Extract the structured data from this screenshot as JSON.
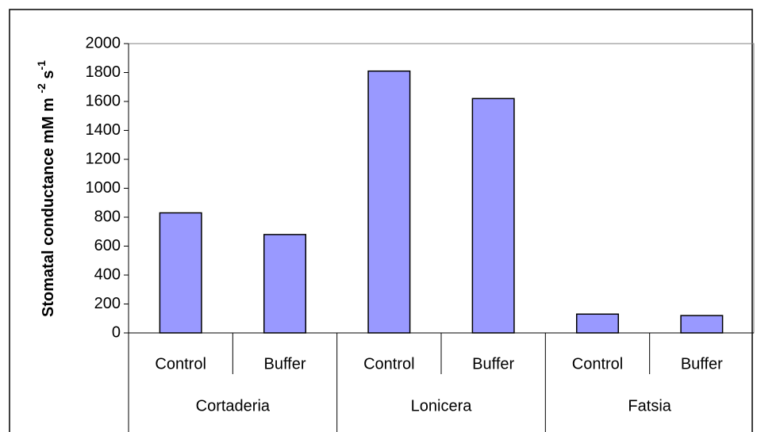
{
  "chart_data": {
    "type": "bar",
    "y_label": {
      "text": "Stomatal conductance mM m",
      "sup1": "-2",
      "unit2": "s",
      "sup2": "-1"
    },
    "groups": [
      "Cortaderia",
      "Lonicera",
      "Fatsia"
    ],
    "categories": [
      "Control",
      "Buffer",
      "Control",
      "Buffer",
      "Control",
      "Buffer"
    ],
    "values": [
      830,
      680,
      1810,
      1620,
      130,
      120
    ],
    "color": "#9999ff",
    "ylim": [
      0,
      2000
    ],
    "yticks": [
      0,
      200,
      400,
      600,
      800,
      1000,
      1200,
      1400,
      1600,
      1800,
      2000
    ]
  }
}
